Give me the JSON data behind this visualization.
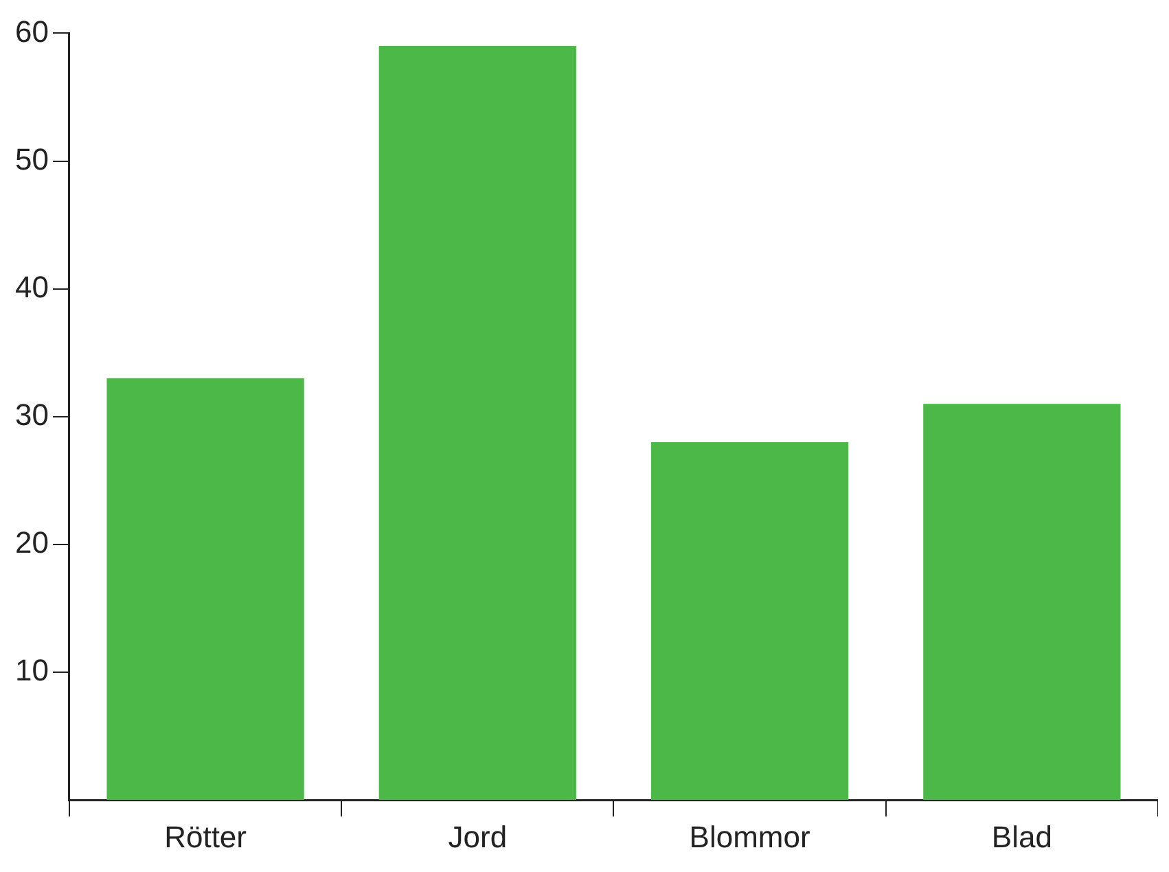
{
  "chart_data": {
    "type": "bar",
    "categories": [
      "Rötter",
      "Jord",
      "Blommor",
      "Blad"
    ],
    "values": [
      33,
      59,
      28,
      31
    ],
    "color": "#4cb848",
    "ylim": [
      0,
      60
    ],
    "yticks": [
      10,
      20,
      30,
      40,
      50,
      60
    ],
    "grid": false
  }
}
